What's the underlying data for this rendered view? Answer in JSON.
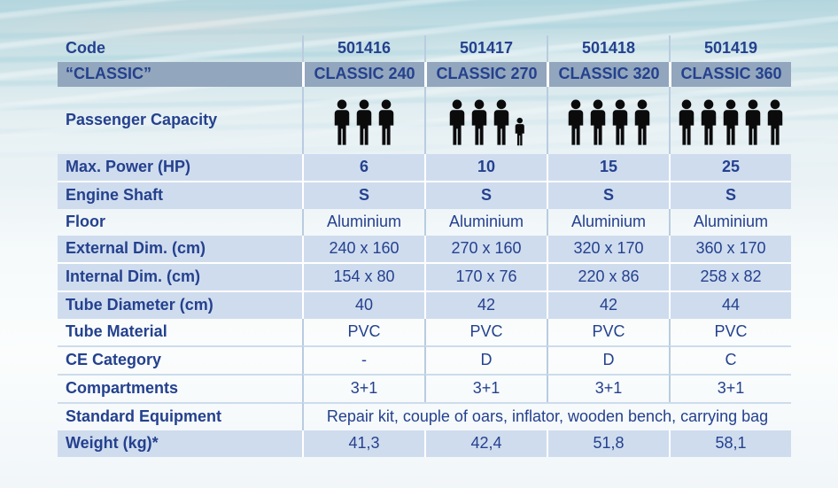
{
  "labels": {
    "code": "Code",
    "classic": "“CLASSIC”",
    "passenger_capacity": "Passenger Capacity",
    "max_power": "Max. Power (HP)",
    "engine_shaft": "Engine Shaft",
    "floor": "Floor",
    "external_dim": "External Dim. (cm)",
    "internal_dim": "Internal Dim. (cm)",
    "tube_diameter": "Tube Diameter (cm)",
    "tube_material": "Tube Material",
    "ce_category": "CE Category",
    "compartments": "Compartments",
    "standard_equipment": "Standard Equipment",
    "weight": "Weight (kg)*"
  },
  "columns": [
    {
      "code": "501416",
      "name": "CLASSIC 240",
      "passengers": {
        "adults": 3,
        "child": false
      },
      "max_power": "6",
      "engine_shaft": "S",
      "floor": "Aluminium",
      "external_dim": "240 x 160",
      "internal_dim": "154 x 80",
      "tube_diameter": "40",
      "tube_material": "PVC",
      "ce_category": "-",
      "compartments": "3+1",
      "weight": "41,3"
    },
    {
      "code": "501417",
      "name": "CLASSIC 270",
      "passengers": {
        "adults": 3,
        "child": true
      },
      "max_power": "10",
      "engine_shaft": "S",
      "floor": "Aluminium",
      "external_dim": "270 x 160",
      "internal_dim": "170 x 76",
      "tube_diameter": "42",
      "tube_material": "PVC",
      "ce_category": "D",
      "compartments": "3+1",
      "weight": "42,4"
    },
    {
      "code": "501418",
      "name": "CLASSIC 320",
      "passengers": {
        "adults": 4,
        "child": false
      },
      "max_power": "15",
      "engine_shaft": "S",
      "floor": "Aluminium",
      "external_dim": "320 x 170",
      "internal_dim": "220 x 86",
      "tube_diameter": "42",
      "tube_material": "PVC",
      "ce_category": "D",
      "compartments": "3+1",
      "weight": "51,8"
    },
    {
      "code": "501419",
      "name": "CLASSIC 360",
      "passengers": {
        "adults": 5,
        "child": false
      },
      "max_power": "25",
      "engine_shaft": "S",
      "floor": "Aluminium",
      "external_dim": "360 x 170",
      "internal_dim": "258 x 82",
      "tube_diameter": "44",
      "tube_material": "PVC",
      "ce_category": "C",
      "compartments": "3+1",
      "weight": "58,1"
    }
  ],
  "standard_equipment_value": "Repair kit, couple of oars, inflator, wooden bench, carrying bag",
  "colors": {
    "text_navy": "#24418e",
    "header_bg": "#92a6bd",
    "row_blue_bg": "#cfdcee",
    "separator_blue": "#b9cce0",
    "icon_black": "#0b0b0c"
  }
}
